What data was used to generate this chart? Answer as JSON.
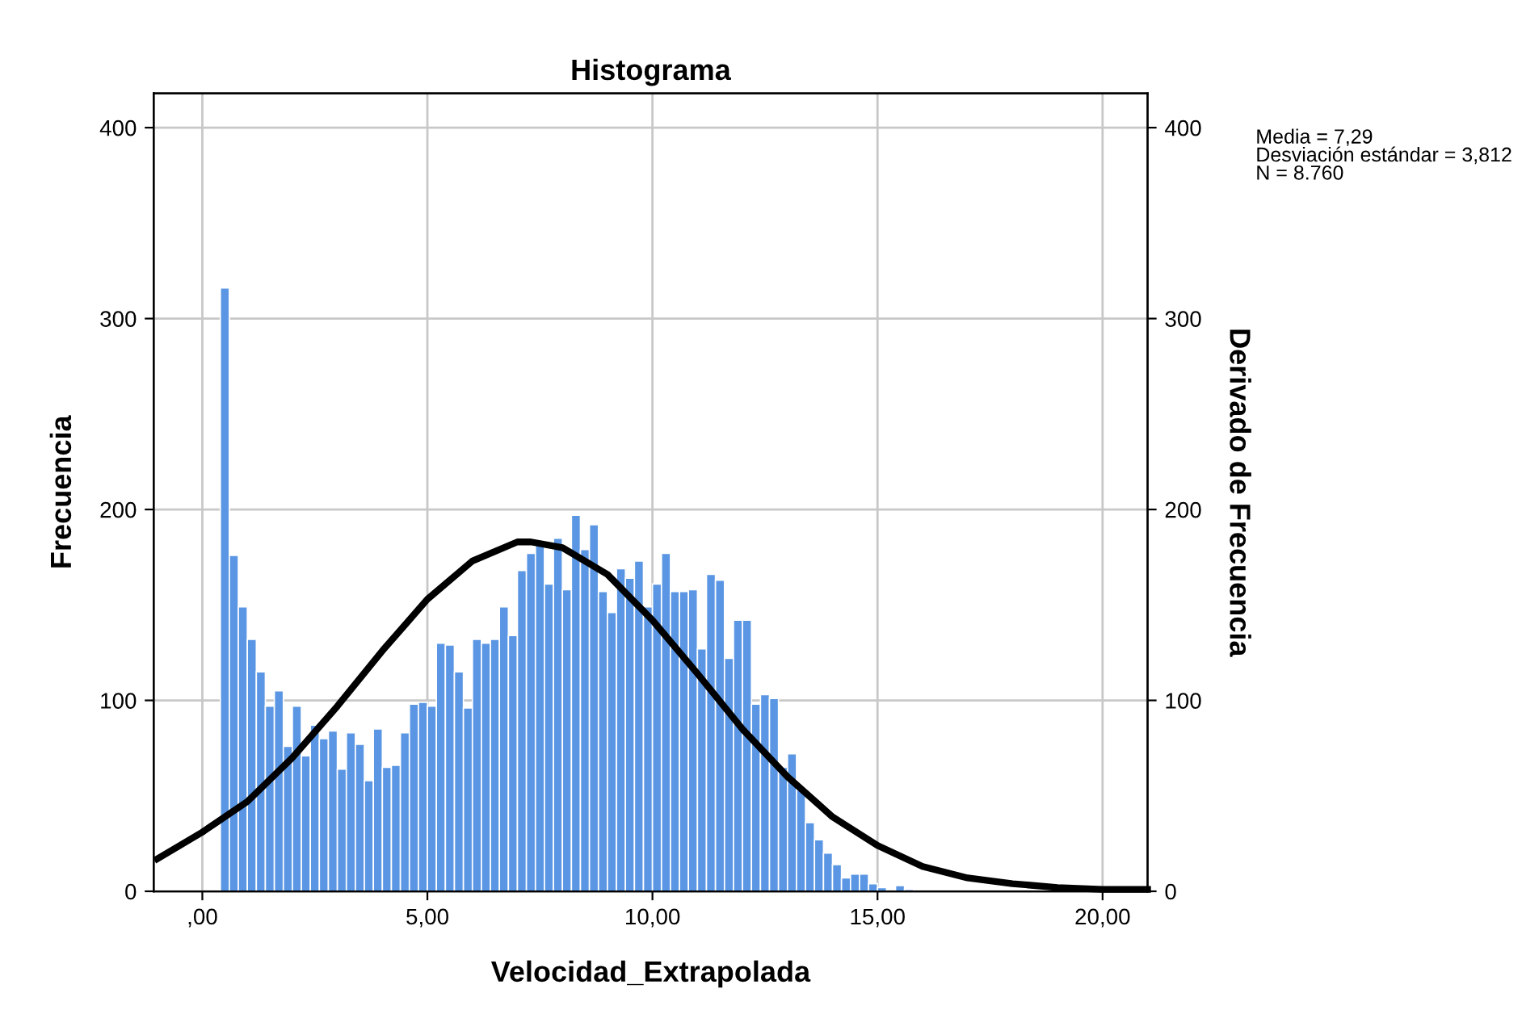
{
  "chart_data": {
    "type": "histogram",
    "title": "Histograma",
    "xlabel": "Velocidad_Extrapolada",
    "ylabel": "Frecuencia",
    "y2label": "Derivado de Frecuencia",
    "color": "#5a96e3",
    "bins": [
      0.4,
      0.6,
      0.8,
      1.0,
      1.2,
      1.4,
      1.6,
      1.8,
      2.0,
      2.2,
      2.4,
      2.6,
      2.8,
      3.0,
      3.2,
      3.4,
      3.6,
      3.8,
      4.0,
      4.2,
      4.4,
      4.6,
      4.8,
      5.0,
      5.2,
      5.4,
      5.6,
      5.8,
      6.0,
      6.2,
      6.4,
      6.6,
      6.8,
      7.0,
      7.2,
      7.4,
      7.6,
      7.8,
      8.0,
      8.2,
      8.4,
      8.6,
      8.8,
      9.0,
      9.2,
      9.4,
      9.6,
      9.8,
      10.0,
      10.2,
      10.4,
      10.6,
      10.8,
      11.0,
      11.2,
      11.4,
      11.6,
      11.8,
      12.0,
      12.2,
      12.4,
      12.6,
      12.8,
      13.0,
      13.2,
      13.4,
      13.6,
      13.8,
      14.0,
      14.2,
      14.4,
      14.6,
      14.8,
      15.0,
      15.2,
      15.4,
      15.6,
      15.8
    ],
    "values": [
      316,
      176,
      149,
      132,
      115,
      97,
      105,
      76,
      97,
      71,
      87,
      80,
      84,
      64,
      83,
      77,
      58,
      85,
      65,
      66,
      83,
      98,
      99,
      97,
      130,
      129,
      115,
      96,
      132,
      130,
      132,
      149,
      134,
      168,
      177,
      182,
      161,
      185,
      158,
      197,
      179,
      192,
      157,
      146,
      169,
      164,
      173,
      149,
      161,
      177,
      157,
      157,
      158,
      127,
      166,
      163,
      122,
      142,
      142,
      98,
      103,
      101,
      65,
      72,
      53,
      36,
      27,
      20,
      14,
      7,
      9,
      9,
      4,
      2,
      0,
      3,
      1
    ],
    "series": [
      {
        "type": "line",
        "color": "#000000",
        "x": [
          -1,
          0,
          1,
          2,
          3,
          4,
          5,
          6,
          7,
          7.3,
          8,
          9,
          10,
          11,
          12,
          13,
          14,
          15,
          16,
          17,
          18,
          19,
          20,
          21
        ],
        "values": [
          17,
          31,
          47,
          70,
          97,
          126,
          153,
          173,
          183,
          183,
          180,
          166,
          142,
          114,
          85,
          60,
          39,
          24,
          13,
          7,
          4,
          2,
          1,
          1
        ]
      }
    ],
    "xlim": [
      -1.08,
      21.0
    ],
    "xticks": [
      {
        "value": 0,
        "label": ",00"
      },
      {
        "value": 5,
        "label": "5,00"
      },
      {
        "value": 10,
        "label": "10,00"
      },
      {
        "value": 15,
        "label": "15,00"
      },
      {
        "value": 20,
        "label": "20,00"
      }
    ],
    "ylim": [
      0,
      418
    ],
    "yticks": [
      0,
      100,
      200,
      300,
      400
    ],
    "y2lim": [
      0,
      418
    ],
    "y2ticks": [
      0,
      100,
      200,
      300,
      400
    ],
    "grid": true,
    "line_style": "solid",
    "annotations": [
      "Media = 7,29\nDesviación estándar = 3,812\nN = 8.760"
    ]
  }
}
